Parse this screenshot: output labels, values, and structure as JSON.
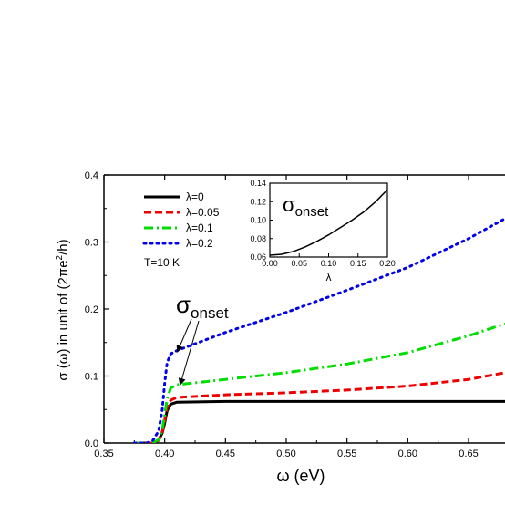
{
  "chart_data": [
    {
      "type": "line",
      "xlabel": "ω (eV)",
      "ylabel_parts": {
        "main": "σ (ω) in unit of (2πe",
        "sup": "2",
        "end": "/h)"
      },
      "xlim": [
        0.35,
        0.68
      ],
      "ylim": [
        0.0,
        0.4
      ],
      "xticks": [
        "0.35",
        "0.40",
        "0.45",
        "0.50",
        "0.55",
        "0.60",
        "0.65"
      ],
      "yticks": [
        "0.0",
        "0.1",
        "0.2",
        "0.3",
        "0.4"
      ],
      "annotation_main": "σ",
      "annotation_sub": "onset",
      "temperature_label": "T=10 K",
      "series": [
        {
          "name": "λ=0",
          "color": "#000000",
          "dash": "solid",
          "x": [
            0.375,
            0.39,
            0.395,
            0.398,
            0.4,
            0.402,
            0.405,
            0.41,
            0.45,
            0.5,
            0.55,
            0.6,
            0.68
          ],
          "y": [
            0.0,
            0.0,
            0.004,
            0.015,
            0.03,
            0.048,
            0.058,
            0.061,
            0.062,
            0.062,
            0.062,
            0.062,
            0.062
          ]
        },
        {
          "name": "λ=0.05",
          "color": "#ee0000",
          "dash": "dashed",
          "x": [
            0.375,
            0.39,
            0.395,
            0.398,
            0.4,
            0.402,
            0.405,
            0.41,
            0.45,
            0.5,
            0.55,
            0.6,
            0.65,
            0.68
          ],
          "y": [
            0.0,
            0.0,
            0.004,
            0.017,
            0.034,
            0.053,
            0.064,
            0.068,
            0.072,
            0.075,
            0.079,
            0.085,
            0.095,
            0.105
          ]
        },
        {
          "name": "λ=0.1",
          "color": "#00dd00",
          "dash": "dashdot",
          "x": [
            0.375,
            0.39,
            0.395,
            0.398,
            0.4,
            0.402,
            0.405,
            0.41,
            0.45,
            0.5,
            0.55,
            0.6,
            0.65,
            0.68
          ],
          "y": [
            0.0,
            0.0,
            0.005,
            0.02,
            0.042,
            0.066,
            0.082,
            0.087,
            0.095,
            0.105,
            0.118,
            0.135,
            0.16,
            0.178
          ]
        },
        {
          "name": "λ=0.2",
          "color": "#0000ee",
          "dash": "dotted",
          "x": [
            0.375,
            0.385,
            0.39,
            0.395,
            0.398,
            0.4,
            0.402,
            0.405,
            0.41,
            0.45,
            0.5,
            0.55,
            0.6,
            0.65,
            0.68
          ],
          "y": [
            0.0,
            0.0,
            0.003,
            0.018,
            0.05,
            0.09,
            0.12,
            0.133,
            0.138,
            0.165,
            0.195,
            0.228,
            0.262,
            0.305,
            0.335
          ]
        }
      ]
    },
    {
      "type": "line",
      "title_main": "σ",
      "title_sub": "onset",
      "xlabel": "λ",
      "xlim": [
        0.0,
        0.2
      ],
      "ylim": [
        0.06,
        0.14
      ],
      "xticks": [
        "0.00",
        "0.05",
        "0.10",
        "0.15",
        "0.20"
      ],
      "yticks": [
        "0.06",
        "0.08",
        "0.10",
        "0.12",
        "0.14"
      ],
      "series": [
        {
          "color": "#000000",
          "x": [
            0.0,
            0.02,
            0.04,
            0.06,
            0.08,
            0.1,
            0.12,
            0.14,
            0.16,
            0.18,
            0.2
          ],
          "y": [
            0.062,
            0.063,
            0.066,
            0.071,
            0.077,
            0.084,
            0.092,
            0.1,
            0.109,
            0.12,
            0.133
          ]
        }
      ]
    }
  ]
}
